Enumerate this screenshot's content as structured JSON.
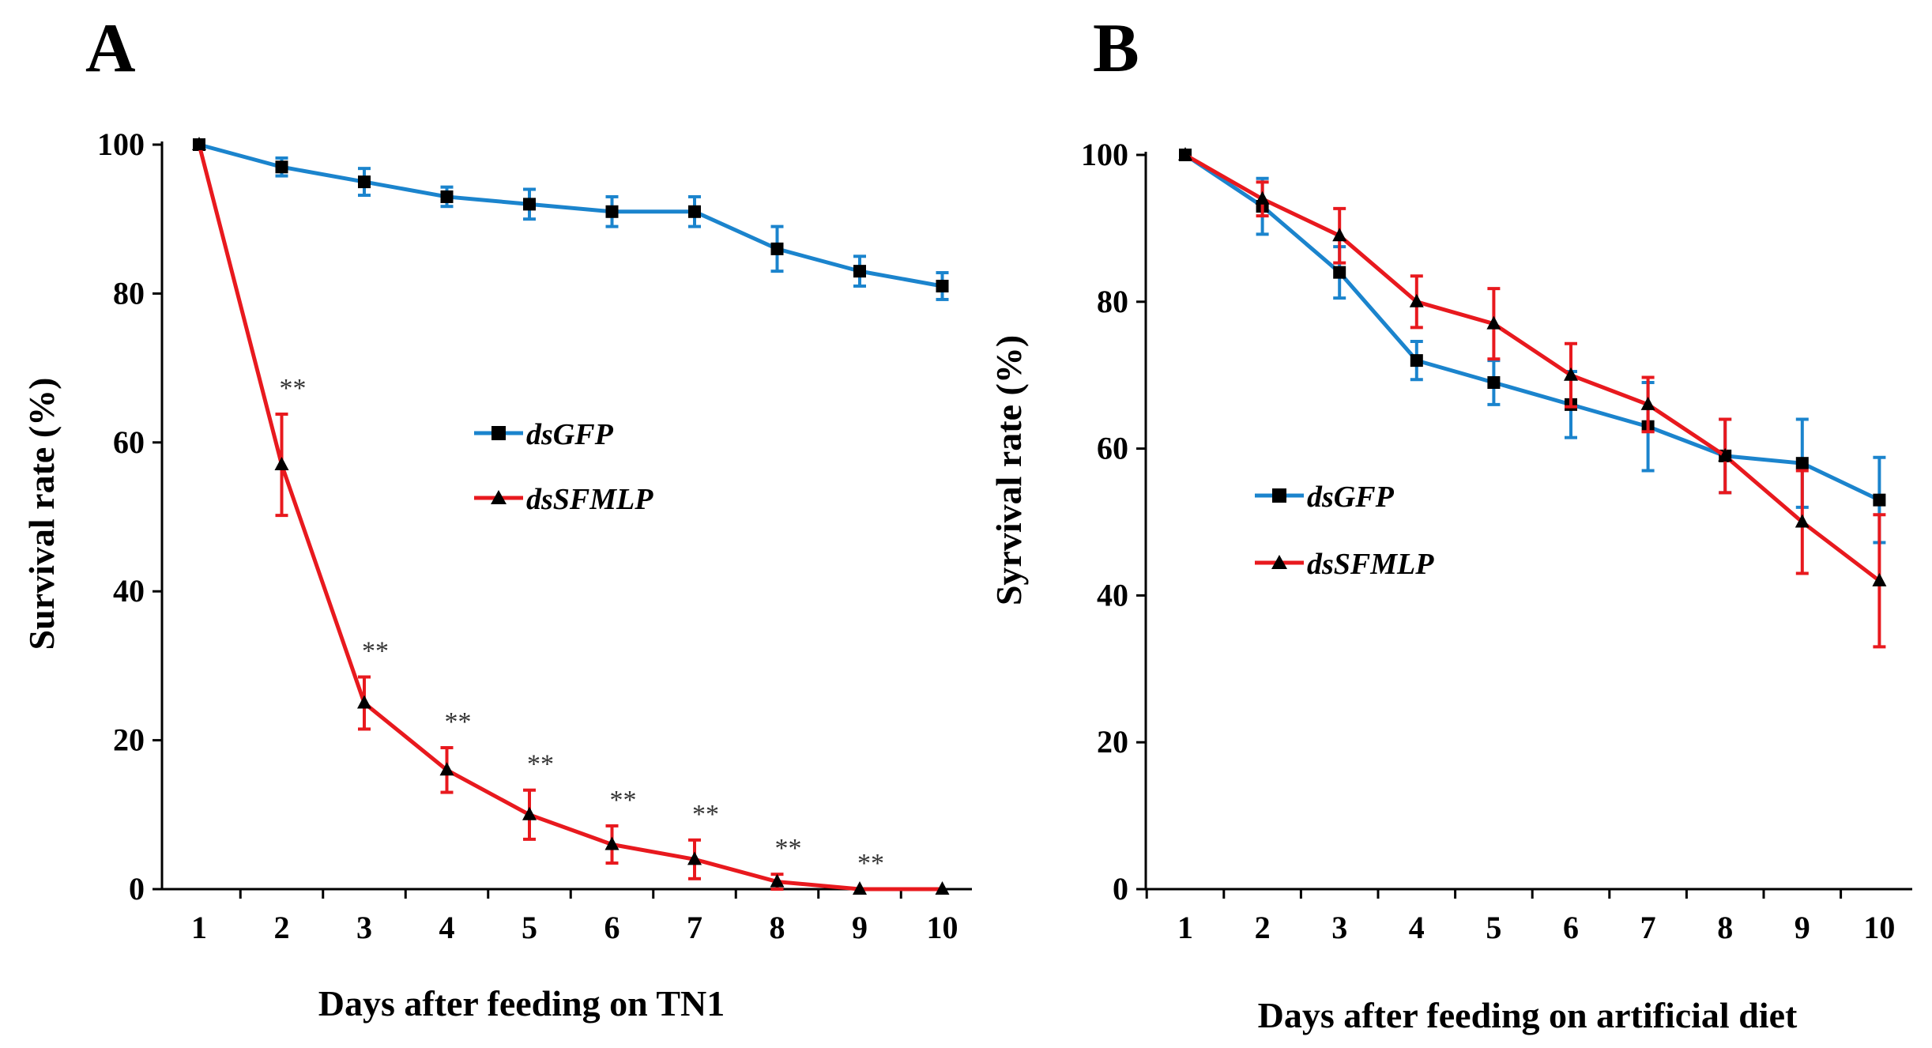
{
  "chart_data": [
    {
      "type": "line",
      "panel": "A",
      "title": "",
      "xlabel": "Days after feeding on TN1",
      "ylabel": "Survival rate (%)",
      "x": [
        1,
        2,
        3,
        4,
        5,
        6,
        7,
        8,
        9,
        10
      ],
      "xticks": [
        "1",
        "2",
        "3",
        "4",
        "5",
        "6",
        "7",
        "8",
        "9",
        "10"
      ],
      "yticks": [
        "0",
        "20",
        "40",
        "60",
        "80",
        "100"
      ],
      "ylim": [
        0,
        100
      ],
      "legend_position": "center",
      "series": [
        {
          "name": "dsGFP",
          "color": "#1b84cd",
          "marker": "square",
          "values": [
            100,
            97,
            95,
            93,
            92,
            91,
            91,
            86,
            83,
            81
          ],
          "errors": [
            0,
            1.2,
            1.8,
            1.3,
            2,
            2,
            2,
            3,
            2,
            1.8
          ]
        },
        {
          "name": "dsSFMLP",
          "color": "#e8191e",
          "marker": "triangle",
          "values": [
            100,
            57,
            25,
            16,
            10,
            6,
            4,
            1,
            0,
            0
          ],
          "errors": [
            0,
            6.8,
            3.5,
            3,
            3.3,
            2.5,
            2.6,
            1,
            0,
            0
          ]
        }
      ],
      "annotations": [
        "",
        "**",
        "**",
        "**",
        "**",
        "**",
        "**",
        "**",
        "**",
        ""
      ]
    },
    {
      "type": "line",
      "panel": "B",
      "title": "",
      "xlabel": "Days after feeding on artificial diet",
      "ylabel": "Syrvival rate (%)",
      "x": [
        1,
        2,
        3,
        4,
        5,
        6,
        7,
        8,
        9,
        10
      ],
      "xticks": [
        "1",
        "2",
        "3",
        "4",
        "5",
        "6",
        "7",
        "8",
        "9",
        "10"
      ],
      "yticks": [
        "0",
        "20",
        "40",
        "60",
        "80",
        "100"
      ],
      "ylim": [
        0,
        100
      ],
      "legend_position": "center-left",
      "series": [
        {
          "name": "dsGFP",
          "color": "#1b84cd",
          "marker": "square",
          "values": [
            100,
            93,
            84,
            72,
            69,
            66,
            63,
            59,
            58,
            53
          ],
          "errors": [
            0,
            3.8,
            3.5,
            2.6,
            3,
            4.5,
            6,
            5,
            6,
            5.8
          ]
        },
        {
          "name": "dsSFMLP",
          "color": "#e8191e",
          "marker": "triangle",
          "values": [
            100,
            94,
            89,
            80,
            77,
            70,
            66,
            59,
            50,
            42
          ],
          "errors": [
            0,
            2.3,
            3.7,
            3.5,
            4.8,
            4.3,
            3.7,
            5,
            7,
            9
          ]
        }
      ],
      "annotations": []
    }
  ]
}
